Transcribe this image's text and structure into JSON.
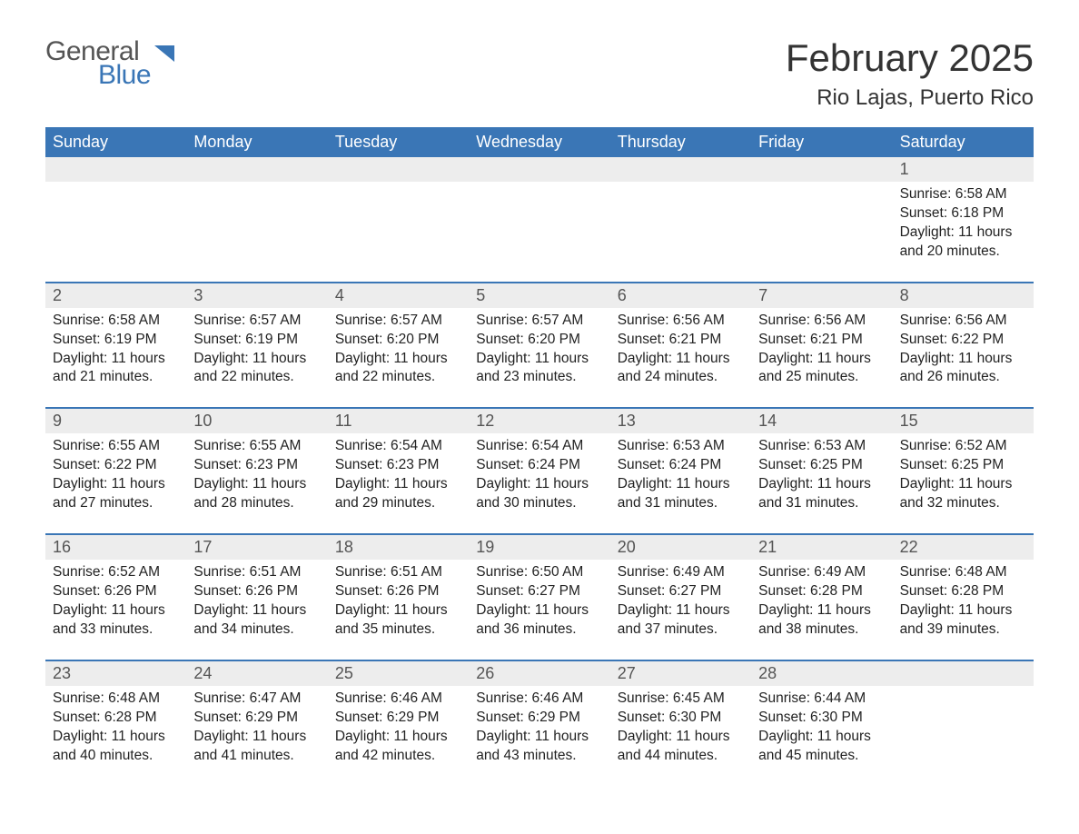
{
  "logo": {
    "word1": "General",
    "word2": "Blue"
  },
  "title": "February 2025",
  "location": "Rio Lajas, Puerto Rico",
  "colors": {
    "header_bg": "#3a76b6",
    "header_text": "#ffffff",
    "daynum_bg": "#ededed",
    "week_border": "#3a76b6",
    "body_text": "#222222",
    "logo_gray": "#555555",
    "logo_blue": "#3a76b6",
    "background": "#ffffff"
  },
  "typography": {
    "title_fontsize": 42,
    "location_fontsize": 24,
    "weekday_fontsize": 18,
    "daynum_fontsize": 18,
    "content_fontsize": 15.5
  },
  "weekdays": [
    "Sunday",
    "Monday",
    "Tuesday",
    "Wednesday",
    "Thursday",
    "Friday",
    "Saturday"
  ],
  "labels": {
    "sunrise": "Sunrise:",
    "sunset": "Sunset:",
    "daylight": "Daylight:"
  },
  "weeks": [
    [
      {
        "day": "",
        "sunrise": "",
        "sunset": "",
        "daylight": ""
      },
      {
        "day": "",
        "sunrise": "",
        "sunset": "",
        "daylight": ""
      },
      {
        "day": "",
        "sunrise": "",
        "sunset": "",
        "daylight": ""
      },
      {
        "day": "",
        "sunrise": "",
        "sunset": "",
        "daylight": ""
      },
      {
        "day": "",
        "sunrise": "",
        "sunset": "",
        "daylight": ""
      },
      {
        "day": "",
        "sunrise": "",
        "sunset": "",
        "daylight": ""
      },
      {
        "day": "1",
        "sunrise": "6:58 AM",
        "sunset": "6:18 PM",
        "daylight": "11 hours and 20 minutes."
      }
    ],
    [
      {
        "day": "2",
        "sunrise": "6:58 AM",
        "sunset": "6:19 PM",
        "daylight": "11 hours and 21 minutes."
      },
      {
        "day": "3",
        "sunrise": "6:57 AM",
        "sunset": "6:19 PM",
        "daylight": "11 hours and 22 minutes."
      },
      {
        "day": "4",
        "sunrise": "6:57 AM",
        "sunset": "6:20 PM",
        "daylight": "11 hours and 22 minutes."
      },
      {
        "day": "5",
        "sunrise": "6:57 AM",
        "sunset": "6:20 PM",
        "daylight": "11 hours and 23 minutes."
      },
      {
        "day": "6",
        "sunrise": "6:56 AM",
        "sunset": "6:21 PM",
        "daylight": "11 hours and 24 minutes."
      },
      {
        "day": "7",
        "sunrise": "6:56 AM",
        "sunset": "6:21 PM",
        "daylight": "11 hours and 25 minutes."
      },
      {
        "day": "8",
        "sunrise": "6:56 AM",
        "sunset": "6:22 PM",
        "daylight": "11 hours and 26 minutes."
      }
    ],
    [
      {
        "day": "9",
        "sunrise": "6:55 AM",
        "sunset": "6:22 PM",
        "daylight": "11 hours and 27 minutes."
      },
      {
        "day": "10",
        "sunrise": "6:55 AM",
        "sunset": "6:23 PM",
        "daylight": "11 hours and 28 minutes."
      },
      {
        "day": "11",
        "sunrise": "6:54 AM",
        "sunset": "6:23 PM",
        "daylight": "11 hours and 29 minutes."
      },
      {
        "day": "12",
        "sunrise": "6:54 AM",
        "sunset": "6:24 PM",
        "daylight": "11 hours and 30 minutes."
      },
      {
        "day": "13",
        "sunrise": "6:53 AM",
        "sunset": "6:24 PM",
        "daylight": "11 hours and 31 minutes."
      },
      {
        "day": "14",
        "sunrise": "6:53 AM",
        "sunset": "6:25 PM",
        "daylight": "11 hours and 31 minutes."
      },
      {
        "day": "15",
        "sunrise": "6:52 AM",
        "sunset": "6:25 PM",
        "daylight": "11 hours and 32 minutes."
      }
    ],
    [
      {
        "day": "16",
        "sunrise": "6:52 AM",
        "sunset": "6:26 PM",
        "daylight": "11 hours and 33 minutes."
      },
      {
        "day": "17",
        "sunrise": "6:51 AM",
        "sunset": "6:26 PM",
        "daylight": "11 hours and 34 minutes."
      },
      {
        "day": "18",
        "sunrise": "6:51 AM",
        "sunset": "6:26 PM",
        "daylight": "11 hours and 35 minutes."
      },
      {
        "day": "19",
        "sunrise": "6:50 AM",
        "sunset": "6:27 PM",
        "daylight": "11 hours and 36 minutes."
      },
      {
        "day": "20",
        "sunrise": "6:49 AM",
        "sunset": "6:27 PM",
        "daylight": "11 hours and 37 minutes."
      },
      {
        "day": "21",
        "sunrise": "6:49 AM",
        "sunset": "6:28 PM",
        "daylight": "11 hours and 38 minutes."
      },
      {
        "day": "22",
        "sunrise": "6:48 AM",
        "sunset": "6:28 PM",
        "daylight": "11 hours and 39 minutes."
      }
    ],
    [
      {
        "day": "23",
        "sunrise": "6:48 AM",
        "sunset": "6:28 PM",
        "daylight": "11 hours and 40 minutes."
      },
      {
        "day": "24",
        "sunrise": "6:47 AM",
        "sunset": "6:29 PM",
        "daylight": "11 hours and 41 minutes."
      },
      {
        "day": "25",
        "sunrise": "6:46 AM",
        "sunset": "6:29 PM",
        "daylight": "11 hours and 42 minutes."
      },
      {
        "day": "26",
        "sunrise": "6:46 AM",
        "sunset": "6:29 PM",
        "daylight": "11 hours and 43 minutes."
      },
      {
        "day": "27",
        "sunrise": "6:45 AM",
        "sunset": "6:30 PM",
        "daylight": "11 hours and 44 minutes."
      },
      {
        "day": "28",
        "sunrise": "6:44 AM",
        "sunset": "6:30 PM",
        "daylight": "11 hours and 45 minutes."
      },
      {
        "day": "",
        "sunrise": "",
        "sunset": "",
        "daylight": ""
      }
    ]
  ]
}
